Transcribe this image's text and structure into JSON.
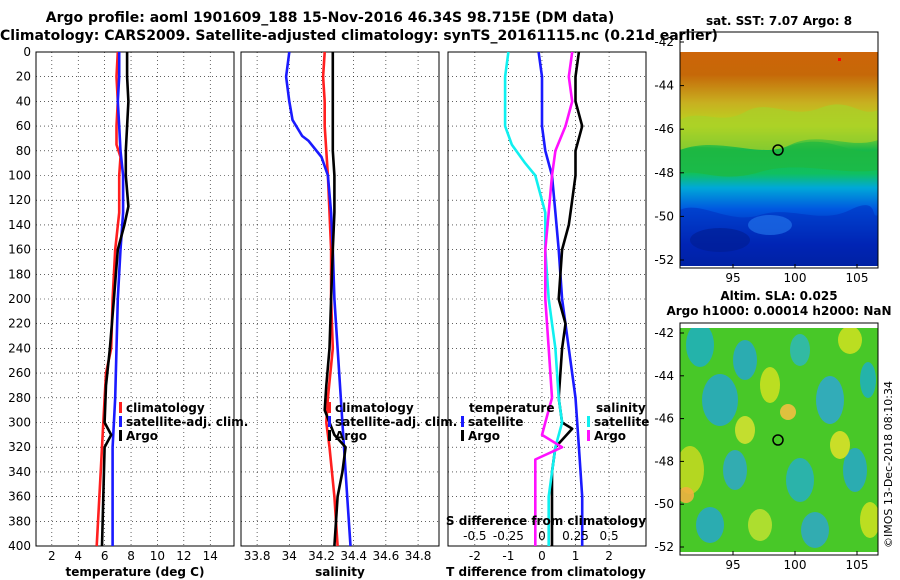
{
  "title": {
    "line1": "Argo profile: aoml 1901609_188 15-Nov-2016 46.34S 98.715E (DM data)",
    "line2": "Climatology: CARS2009. Satellite-adjusted climatology: synTS_20161115.nc (0.21d earlier)"
  },
  "colors": {
    "climatology": "#ff1f1f",
    "satellite": "#1a1aff",
    "argo": "#000000",
    "salinity_diff": "#ff10ff",
    "salinity_sat_diff": "#10f0f0"
  },
  "depth_ticks": [
    0,
    20,
    40,
    60,
    80,
    100,
    120,
    140,
    160,
    180,
    200,
    220,
    240,
    260,
    280,
    300,
    320,
    340,
    360,
    380,
    400
  ],
  "chart_data": [
    {
      "type": "line",
      "id": "temperature",
      "xlabel": "temperature (deg C)",
      "ylabel": "",
      "xlim": [
        0.8,
        15.8
      ],
      "ylim": [
        400,
        0
      ],
      "xticks": [
        2,
        4,
        6,
        8,
        10,
        12,
        14
      ],
      "legend": [
        "climatology",
        "satellite-adj. clim.",
        "Argo"
      ],
      "series": [
        {
          "name": "climatology",
          "color": "#ff1f1f",
          "points": [
            [
              7.0,
              0
            ],
            [
              6.9,
              20
            ],
            [
              7.0,
              40
            ],
            [
              6.9,
              60
            ],
            [
              6.9,
              75
            ],
            [
              7.2,
              85
            ],
            [
              7.1,
              100
            ],
            [
              7.1,
              130
            ],
            [
              6.8,
              160
            ],
            [
              6.6,
              200
            ],
            [
              6.5,
              240
            ],
            [
              6.1,
              260
            ],
            [
              5.9,
              300
            ],
            [
              5.7,
              340
            ],
            [
              5.4,
              400
            ]
          ]
        },
        {
          "name": "satellite-adj. clim.",
          "color": "#1a1aff",
          "points": [
            [
              7.1,
              0
            ],
            [
              7.1,
              20
            ],
            [
              7.0,
              40
            ],
            [
              7.1,
              60
            ],
            [
              7.2,
              80
            ],
            [
              7.4,
              100
            ],
            [
              7.4,
              130
            ],
            [
              7.2,
              160
            ],
            [
              7.0,
              200
            ],
            [
              6.9,
              240
            ],
            [
              6.8,
              280
            ],
            [
              6.6,
              320
            ],
            [
              6.6,
              360
            ],
            [
              6.6,
              400
            ]
          ]
        },
        {
          "name": "Argo",
          "color": "#000000",
          "points": [
            [
              7.7,
              0
            ],
            [
              7.7,
              20
            ],
            [
              7.8,
              40
            ],
            [
              7.7,
              60
            ],
            [
              7.6,
              80
            ],
            [
              7.6,
              100
            ],
            [
              7.8,
              125
            ],
            [
              7.5,
              140
            ],
            [
              7.0,
              160
            ],
            [
              6.7,
              200
            ],
            [
              6.4,
              240
            ],
            [
              6.1,
              270
            ],
            [
              6.0,
              300
            ],
            [
              6.5,
              310
            ],
            [
              6.0,
              320
            ],
            [
              5.9,
              360
            ],
            [
              5.8,
              400
            ]
          ]
        }
      ]
    },
    {
      "type": "line",
      "id": "salinity",
      "xlabel": "salinity",
      "xlim": [
        33.7,
        34.93
      ],
      "ylim": [
        400,
        0
      ],
      "xticks": [
        33.8,
        34,
        34.2,
        34.4,
        34.6,
        34.8
      ],
      "legend": [
        "climatology",
        "satellite-adj. clim.",
        "Argo"
      ],
      "series": [
        {
          "name": "climatology",
          "color": "#ff1f1f",
          "points": [
            [
              34.22,
              0
            ],
            [
              34.21,
              20
            ],
            [
              34.22,
              40
            ],
            [
              34.22,
              60
            ],
            [
              34.23,
              80
            ],
            [
              34.24,
              100
            ],
            [
              34.25,
              130
            ],
            [
              34.26,
              160
            ],
            [
              34.26,
              200
            ],
            [
              34.27,
              240
            ],
            [
              34.24,
              280
            ],
            [
              34.23,
              300
            ],
            [
              34.25,
              320
            ],
            [
              34.28,
              360
            ],
            [
              34.3,
              400
            ]
          ]
        },
        {
          "name": "satellite-adj. clim.",
          "color": "#1a1aff",
          "points": [
            [
              34.0,
              0
            ],
            [
              33.98,
              20
            ],
            [
              34.0,
              40
            ],
            [
              34.02,
              55
            ],
            [
              34.08,
              68
            ],
            [
              34.12,
              72
            ],
            [
              34.2,
              85
            ],
            [
              34.24,
              100
            ],
            [
              34.26,
              130
            ],
            [
              34.27,
              160
            ],
            [
              34.28,
              200
            ],
            [
              34.3,
              240
            ],
            [
              34.32,
              280
            ],
            [
              34.34,
              320
            ],
            [
              34.36,
              360
            ],
            [
              34.38,
              400
            ]
          ]
        },
        {
          "name": "Argo",
          "color": "#000000",
          "points": [
            [
              34.27,
              0
            ],
            [
              34.27,
              20
            ],
            [
              34.27,
              40
            ],
            [
              34.27,
              60
            ],
            [
              34.27,
              80
            ],
            [
              34.28,
              100
            ],
            [
              34.28,
              130
            ],
            [
              34.27,
              160
            ],
            [
              34.26,
              200
            ],
            [
              34.25,
              240
            ],
            [
              34.23,
              270
            ],
            [
              34.22,
              290
            ],
            [
              34.25,
              300
            ],
            [
              34.28,
              310
            ],
            [
              34.35,
              320
            ],
            [
              34.33,
              340
            ],
            [
              34.3,
              360
            ],
            [
              34.29,
              380
            ],
            [
              34.28,
              400
            ]
          ]
        }
      ]
    },
    {
      "type": "line",
      "id": "difference",
      "xlabel": "T difference from climatology",
      "xlabel_top": "S difference from climatology",
      "xlim": [
        -2.8,
        3.1
      ],
      "ylim": [
        400,
        0
      ],
      "xticks": [
        -2,
        -1,
        0,
        1,
        2
      ],
      "xticks_secondary": [
        "-0.5",
        "-0.25",
        "0",
        "0.25",
        "0.5"
      ],
      "legend_left": {
        "header": "temperature",
        "items": [
          "satellite",
          "Argo"
        ]
      },
      "legend_right": {
        "header": "salinity",
        "items": [
          "satellite",
          "Argo"
        ]
      },
      "series": [
        {
          "name": "T satellite",
          "color": "#1a1aff",
          "points": [
            [
              -0.1,
              0
            ],
            [
              0.0,
              20
            ],
            [
              0.0,
              60
            ],
            [
              0.1,
              80
            ],
            [
              0.3,
              100
            ],
            [
              0.4,
              130
            ],
            [
              0.5,
              160
            ],
            [
              0.6,
              200
            ],
            [
              0.8,
              240
            ],
            [
              1.0,
              280
            ],
            [
              1.1,
              320
            ],
            [
              1.2,
              360
            ],
            [
              1.2,
              400
            ]
          ]
        },
        {
          "name": "T Argo",
          "color": "#000000",
          "points": [
            [
              1.1,
              0
            ],
            [
              1.0,
              20
            ],
            [
              1.0,
              40
            ],
            [
              1.2,
              60
            ],
            [
              1.0,
              80
            ],
            [
              1.0,
              100
            ],
            [
              0.9,
              120
            ],
            [
              0.8,
              140
            ],
            [
              0.6,
              160
            ],
            [
              0.5,
              200
            ],
            [
              0.7,
              220
            ],
            [
              0.6,
              240
            ],
            [
              0.5,
              280
            ],
            [
              0.6,
              300
            ],
            [
              0.9,
              305
            ],
            [
              0.4,
              320
            ],
            [
              0.3,
              340
            ],
            [
              0.3,
              400
            ]
          ]
        },
        {
          "name": "S satellite",
          "color": "#10f0f0",
          "points": [
            [
              -1.0,
              0
            ],
            [
              -1.1,
              20
            ],
            [
              -1.1,
              60
            ],
            [
              -0.9,
              75
            ],
            [
              -0.5,
              90
            ],
            [
              -0.2,
              100
            ],
            [
              0.1,
              130
            ],
            [
              0.1,
              160
            ],
            [
              0.2,
              200
            ],
            [
              0.4,
              240
            ],
            [
              0.5,
              280
            ],
            [
              0.6,
              300
            ],
            [
              0.4,
              320
            ],
            [
              0.2,
              360
            ],
            [
              0.2,
              400
            ]
          ]
        },
        {
          "name": "S Argo",
          "color": "#ff10ff",
          "points": [
            [
              0.9,
              0
            ],
            [
              0.8,
              20
            ],
            [
              0.9,
              40
            ],
            [
              0.7,
              60
            ],
            [
              0.4,
              80
            ],
            [
              0.3,
              100
            ],
            [
              0.2,
              130
            ],
            [
              0.1,
              160
            ],
            [
              0.1,
              200
            ],
            [
              0.2,
              240
            ],
            [
              0.3,
              280
            ],
            [
              0.1,
              300
            ],
            [
              0.0,
              310
            ],
            [
              0.6,
              320
            ],
            [
              -0.2,
              330
            ],
            [
              -0.2,
              400
            ]
          ]
        }
      ]
    }
  ],
  "map_top": {
    "title": "sat. SST: 7.07 Argo: 8",
    "yticks": [
      "-42",
      "-44",
      "-46",
      "-48",
      "-50",
      "-52"
    ],
    "xticks": [
      "95",
      "100",
      "105"
    ],
    "marker": "Argo position"
  },
  "map_bottom": {
    "title_line1": "Altim. SLA: 0.025",
    "title_line2": "Argo h1000: 0.00014 h2000: NaN",
    "yticks": [
      "-42",
      "-44",
      "-46",
      "-48",
      "-50",
      "-52"
    ],
    "xticks": [
      "95",
      "100",
      "105"
    ],
    "marker": "Argo position"
  },
  "credit": "©IMOS 13-Dec-2018 08:10:34"
}
